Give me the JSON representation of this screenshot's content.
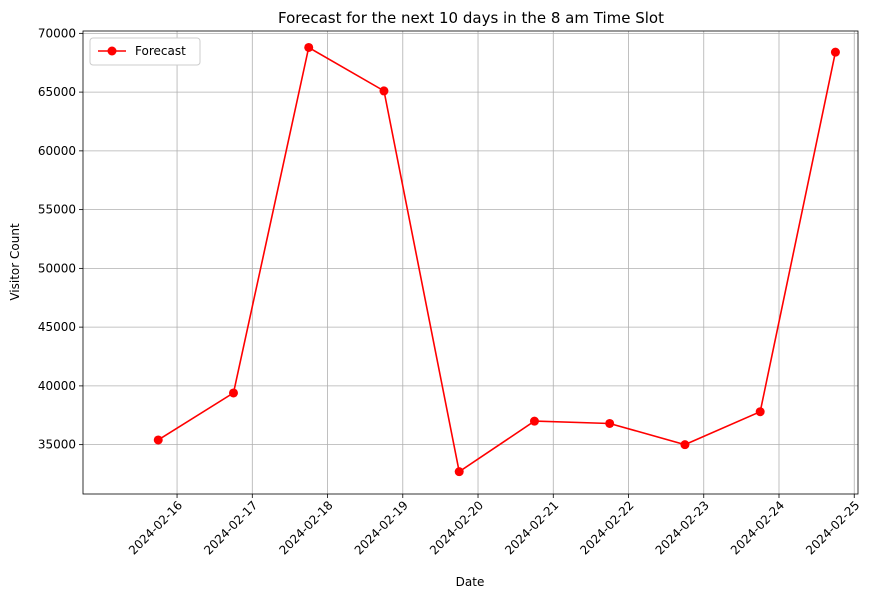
{
  "chart_data": {
    "type": "line",
    "title": "Forecast for the next 10 days in the 8 am Time Slot",
    "xlabel": "Date",
    "ylabel": "Visitor Count",
    "x_ticks": [
      "2024-02-16",
      "2024-02-17",
      "2024-02-18",
      "2024-02-19",
      "2024-02-20",
      "2024-02-21",
      "2024-02-22",
      "2024-02-23",
      "2024-02-24",
      "2024-02-25"
    ],
    "y_ticks": [
      "35000",
      "40000",
      "45000",
      "50000",
      "55000",
      "60000",
      "65000",
      "70000"
    ],
    "xlim": [
      "2024-02-15",
      "2024-02-25"
    ],
    "ylim": [
      30800,
      70200
    ],
    "grid": true,
    "legend_position": "top-left",
    "series": [
      {
        "name": "Forecast",
        "color": "#ff0000",
        "marker": "circle",
        "x": [
          "2024-02-15",
          "2024-02-16",
          "2024-02-17",
          "2024-02-18",
          "2024-02-19",
          "2024-02-20",
          "2024-02-21",
          "2024-02-22",
          "2024-02-23",
          "2024-02-24"
        ],
        "values": [
          35400,
          39400,
          68800,
          65100,
          32700,
          37000,
          36800,
          35000,
          37800,
          68400
        ]
      }
    ]
  }
}
